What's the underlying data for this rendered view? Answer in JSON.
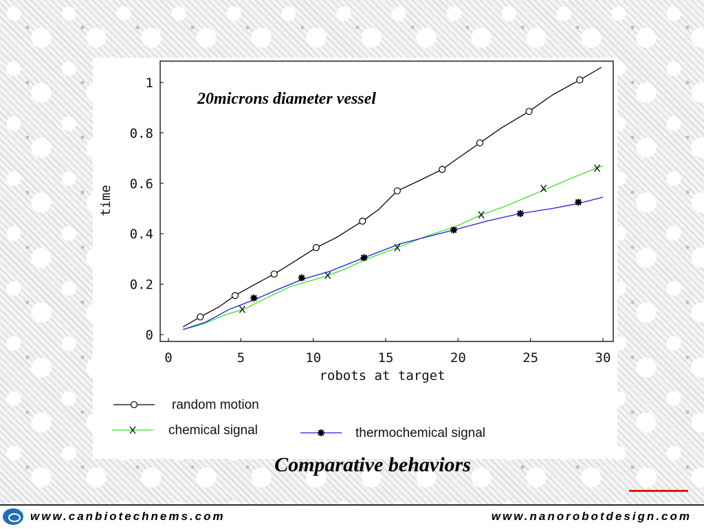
{
  "chart_data": {
    "type": "line",
    "title": "20microns diameter vessel",
    "xlabel": "robots at target",
    "ylabel": "time",
    "xlim": [
      0,
      30
    ],
    "ylim": [
      0,
      1
    ],
    "xticks": [
      "0",
      "5",
      "10",
      "15",
      "20",
      "25",
      "30"
    ],
    "yticks": [
      "0",
      "0.2",
      "0.4",
      "0.6",
      "0.8",
      "1"
    ],
    "grid": false,
    "legend_position": "bottom",
    "series": [
      {
        "name": "random motion",
        "color": "#000000",
        "marker": "circle",
        "line": [
          [
            1,
            0.03
          ],
          [
            2.2,
            0.07
          ],
          [
            3.5,
            0.11
          ],
          [
            4.6,
            0.155
          ],
          [
            6,
            0.2
          ],
          [
            7.3,
            0.24
          ],
          [
            8.7,
            0.29
          ],
          [
            10.2,
            0.345
          ],
          [
            11.6,
            0.385
          ],
          [
            13.4,
            0.45
          ],
          [
            14.5,
            0.495
          ],
          [
            15.8,
            0.57
          ],
          [
            17.3,
            0.61
          ],
          [
            18.9,
            0.655
          ],
          [
            20,
            0.7
          ],
          [
            21.5,
            0.76
          ],
          [
            23,
            0.82
          ],
          [
            24.9,
            0.885
          ],
          [
            26.5,
            0.95
          ],
          [
            28.4,
            1.01
          ],
          [
            29.9,
            1.06
          ]
        ],
        "markers": [
          [
            2.2,
            0.07
          ],
          [
            4.6,
            0.155
          ],
          [
            7.3,
            0.24
          ],
          [
            10.2,
            0.345
          ],
          [
            13.4,
            0.45
          ],
          [
            15.8,
            0.57
          ],
          [
            18.9,
            0.655
          ],
          [
            21.5,
            0.76
          ],
          [
            24.9,
            0.885
          ],
          [
            28.4,
            1.01
          ]
        ]
      },
      {
        "name": "chemical signal",
        "color": "#32e51c",
        "marker": "x",
        "line": [
          [
            1,
            0.02
          ],
          [
            2.3,
            0.04
          ],
          [
            4,
            0.08
          ],
          [
            5.2,
            0.1
          ],
          [
            6.6,
            0.14
          ],
          [
            8.4,
            0.19
          ],
          [
            10.8,
            0.23
          ],
          [
            12.2,
            0.26
          ],
          [
            13.7,
            0.3
          ],
          [
            15.6,
            0.34
          ],
          [
            17.8,
            0.39
          ],
          [
            19.9,
            0.43
          ],
          [
            21.4,
            0.47
          ],
          [
            23.3,
            0.51
          ],
          [
            25.8,
            0.57
          ],
          [
            27.8,
            0.62
          ],
          [
            30,
            0.67
          ]
        ],
        "markers": [
          [
            5.1,
            0.1
          ],
          [
            11,
            0.235
          ],
          [
            15.8,
            0.345
          ],
          [
            21.6,
            0.475
          ],
          [
            25.9,
            0.58
          ],
          [
            29.6,
            0.66
          ]
        ]
      },
      {
        "name": "thermochemical signal",
        "color": "#1c1ce6",
        "marker": "asterisk",
        "line": [
          [
            1,
            0.02
          ],
          [
            2.6,
            0.05
          ],
          [
            4.2,
            0.1
          ],
          [
            6,
            0.14
          ],
          [
            7.6,
            0.18
          ],
          [
            9.3,
            0.22
          ],
          [
            11.1,
            0.25
          ],
          [
            13.5,
            0.305
          ],
          [
            16,
            0.36
          ],
          [
            19.7,
            0.415
          ],
          [
            22,
            0.45
          ],
          [
            24.3,
            0.48
          ],
          [
            26.5,
            0.5
          ],
          [
            28.3,
            0.52
          ],
          [
            30,
            0.545
          ]
        ],
        "markers": [
          [
            5.9,
            0.145
          ],
          [
            9.2,
            0.225
          ],
          [
            13.5,
            0.305
          ],
          [
            19.7,
            0.415
          ],
          [
            24.3,
            0.48
          ],
          [
            28.3,
            0.525
          ]
        ]
      }
    ]
  },
  "slide": {
    "title": "Comparative behaviors"
  },
  "footer": {
    "left_link": "www.canbiotechnems.com",
    "right_link": "www.nanorobotdesign.com"
  },
  "colors": {
    "accent_line": "#e3171b",
    "logo": "#1f6fb5"
  }
}
